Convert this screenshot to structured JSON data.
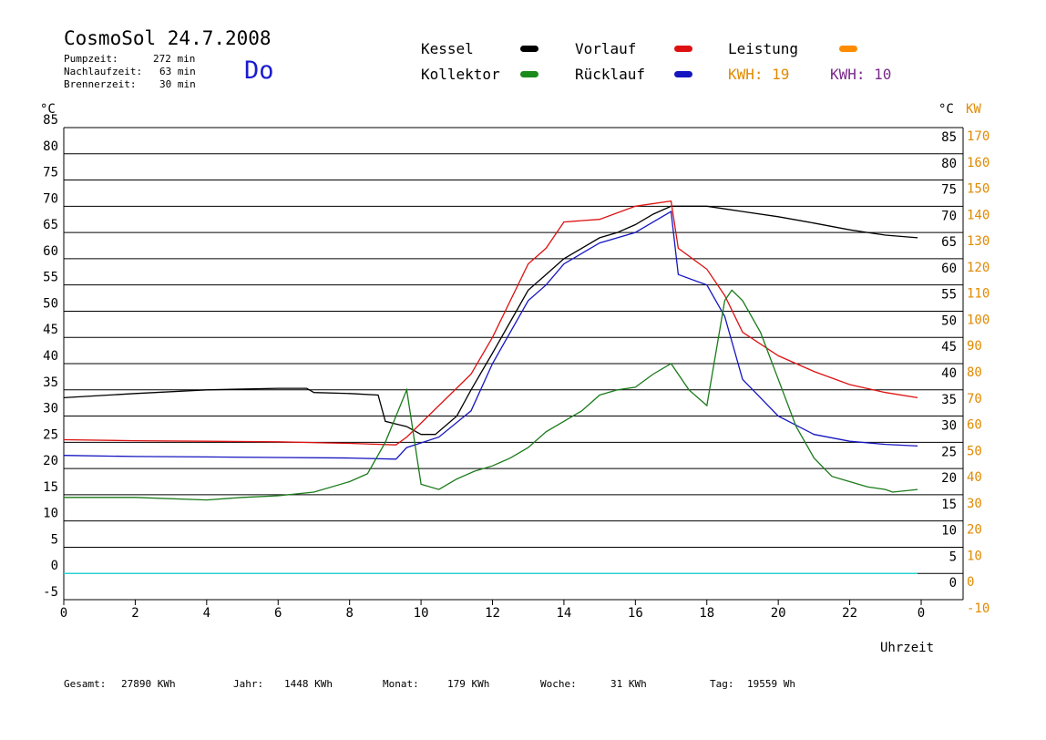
{
  "header": {
    "title": "CosmoSol 24.7.2008",
    "weekday": "Do",
    "pump_label": "Pumpzeit:",
    "pump_value": "272 min",
    "nachlauf_label": "Nachlaufzeit:",
    "nachlauf_value": "63 min",
    "brenner_label": "Brennerzeit:",
    "brenner_value": "30 min"
  },
  "legend": {
    "kessel": "Kessel",
    "kollektor": "Kollektor",
    "vorlauf": "Vorlauf",
    "ruecklauf": "Rücklauf",
    "leistung": "Leistung",
    "kwh_orange": "KWH: 19",
    "kwh_purple": "KWH: 10"
  },
  "footer": {
    "gesamt_label": "Gesamt:",
    "gesamt_value": "27890 KWh",
    "jahr_label": "Jahr:",
    "jahr_value": "1448 KWh",
    "monat_label": "Monat:",
    "monat_value": "179 KWh",
    "woche_label": "Woche:",
    "woche_value": "31 KWh",
    "tag_label": "Tag:",
    "tag_value": "19559 Wh"
  },
  "chart_data": {
    "type": "line",
    "xlabel": "Uhrzeit",
    "ylabel_left": "°C",
    "ylabel_right_c": "°C",
    "ylabel_right_kw": "KW",
    "xlim": [
      0,
      24
    ],
    "ylim": [
      -5,
      85
    ],
    "ylim_kw": [
      -10,
      170
    ],
    "x_ticks": [
      "0",
      "2",
      "4",
      "6",
      "8",
      "10",
      "12",
      "14",
      "16",
      "18",
      "20",
      "22",
      "0"
    ],
    "y_ticks_left": [
      "85",
      "80",
      "75",
      "70",
      "65",
      "60",
      "55",
      "50",
      "45",
      "40",
      "35",
      "30",
      "25",
      "20",
      "15",
      "10",
      "5",
      "0",
      "-5"
    ],
    "y_ticks_right": [
      "85",
      "80",
      "75",
      "70",
      "65",
      "60",
      "55",
      "50",
      "45",
      "40",
      "35",
      "30",
      "25",
      "20",
      "15",
      "10",
      "5",
      "0"
    ],
    "kw_ticks": [
      "170",
      "160",
      "150",
      "140",
      "130",
      "120",
      "110",
      "100",
      "90",
      "80",
      "70",
      "60",
      "50",
      "40",
      "30",
      "20",
      "10",
      "0",
      "-10"
    ],
    "grid": true,
    "colors": {
      "kessel": "#000000",
      "kollektor": "#1a7a1a",
      "vorlauf": "#dd1111",
      "ruecklauf": "#1515c0",
      "leistung": "#ff8c00",
      "purple": "#7a2a8a",
      "cyan": "#30d0d0"
    },
    "series": [
      {
        "name": "Kessel",
        "color_key": "kessel",
        "x": [
          0,
          2,
          4,
          6,
          6.8,
          7,
          8,
          8.8,
          9,
          9.3,
          9.6,
          10,
          10.4,
          11,
          11.4,
          12,
          12.5,
          13,
          13.5,
          14,
          14.5,
          15,
          15.5,
          16,
          16.5,
          17,
          17.5,
          18,
          18.5,
          19,
          20,
          21,
          22,
          22.5,
          23,
          23.9
        ],
        "y": [
          33.5,
          34.3,
          35,
          35.3,
          35.3,
          34.5,
          34.3,
          34,
          29,
          28.5,
          28,
          26.5,
          26.5,
          30,
          35,
          42,
          48,
          54,
          57,
          60,
          62,
          64,
          65,
          66.5,
          68.5,
          70,
          70,
          70,
          69.5,
          69,
          68,
          66.8,
          65.5,
          65,
          64.5,
          64
        ]
      },
      {
        "name": "Vorlauf",
        "color_key": "vorlauf",
        "x": [
          0,
          2,
          4,
          6,
          8,
          9.3,
          9.6,
          11.4,
          12,
          13,
          13.5,
          14,
          15,
          16,
          17,
          17.2,
          18,
          18.5,
          19,
          20,
          21,
          22,
          23,
          23.9
        ],
        "y": [
          25.5,
          25.3,
          25.2,
          25.1,
          24.8,
          24.5,
          26,
          38,
          45,
          59,
          62,
          67,
          67.5,
          70,
          71,
          62,
          58,
          53,
          46,
          41.5,
          38.5,
          36,
          34.5,
          33.5
        ]
      },
      {
        "name": "Rücklauf",
        "color_key": "ruecklauf",
        "x": [
          0,
          2,
          4,
          6,
          8,
          9.3,
          9.6,
          10.5,
          11.4,
          12,
          13,
          13.5,
          14,
          15,
          16,
          17,
          17.2,
          18,
          18.5,
          19,
          20,
          21,
          22,
          23,
          23.9
        ],
        "y": [
          22.5,
          22.3,
          22.2,
          22.1,
          22,
          21.8,
          24,
          26,
          31,
          40,
          52,
          55,
          59,
          63,
          65,
          69,
          57,
          55,
          49,
          37,
          30,
          26.5,
          25.2,
          24.6,
          24.3
        ]
      },
      {
        "name": "Kollektor",
        "color_key": "kollektor",
        "x": [
          0,
          2,
          4,
          5,
          6,
          7,
          8,
          8.5,
          9,
          9.3,
          9.6,
          10,
          10.5,
          11,
          11.5,
          12,
          12.5,
          13,
          13.5,
          14,
          14.5,
          15,
          15.5,
          16,
          16.5,
          17,
          17.5,
          18,
          18.5,
          18.7,
          19,
          19.5,
          20,
          20.5,
          21,
          21.5,
          22,
          22.5,
          23,
          23.2,
          23.9
        ],
        "y": [
          14.5,
          14.5,
          14,
          14.5,
          14.8,
          15.5,
          17.5,
          19,
          25,
          30,
          35,
          17,
          16,
          18,
          19.5,
          20.5,
          22,
          24,
          27,
          29,
          31,
          34,
          35,
          35.5,
          38,
          40,
          35,
          32,
          52,
          54,
          52,
          46,
          37,
          28,
          22,
          18.5,
          17.5,
          16.5,
          16,
          15.5,
          16
        ]
      }
    ],
    "kwh_counters": [
      "KWH: 19",
      "KWH: 10"
    ]
  }
}
